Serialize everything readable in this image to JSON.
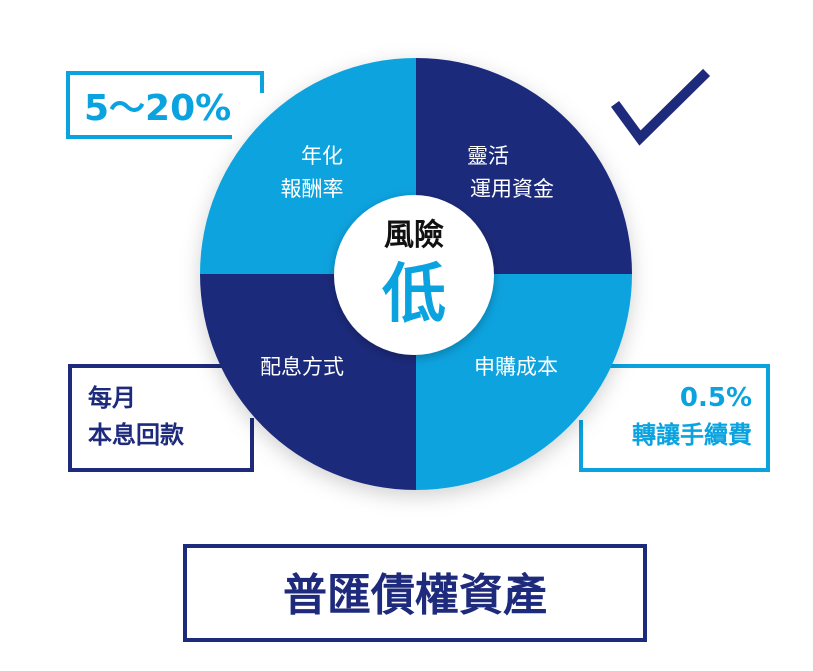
{
  "colors": {
    "light_blue": "#0aa3df",
    "dark_navy": "#1e2a7b",
    "white": "#ffffff"
  },
  "icons": [
    "checkmark-icon"
  ],
  "center": {
    "line1": "風險",
    "line2": "低"
  },
  "quadrants": {
    "top_left": [
      "年化",
      "報酬率"
    ],
    "top_right": [
      "靈活",
      "運用資金"
    ],
    "bottom_left": [
      "配息方式"
    ],
    "bottom_right": [
      "申購成本"
    ]
  },
  "callouts": {
    "top_left": "5～20%",
    "bottom_left": [
      "每月",
      "本息回款"
    ],
    "bottom_right": [
      "0.5%",
      "轉讓手續費"
    ]
  },
  "title": "普匯債權資產"
}
